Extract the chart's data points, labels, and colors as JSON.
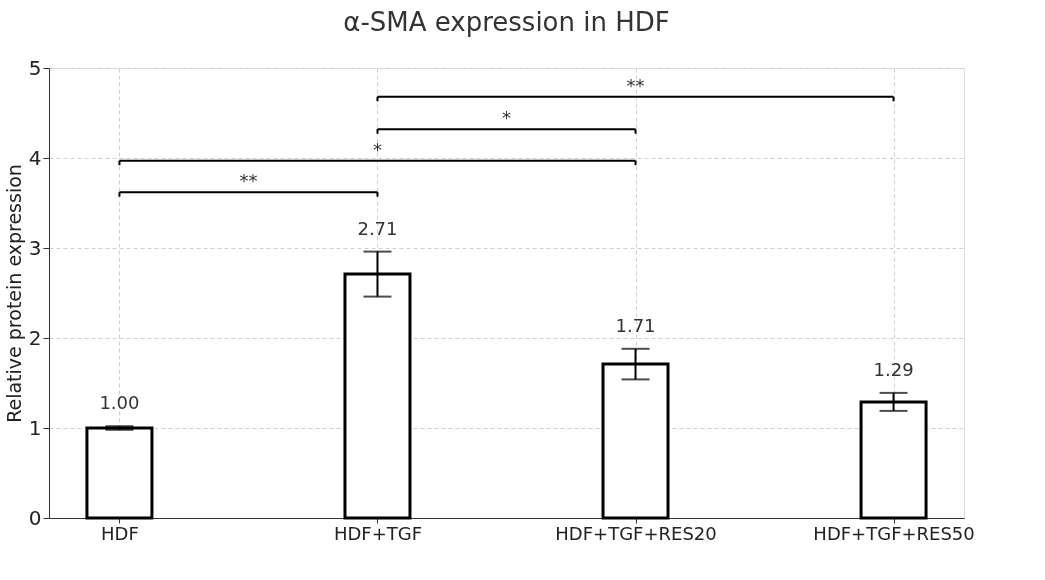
{
  "chart_data": {
    "type": "bar",
    "title": "α-SMA expression in HDF",
    "ylabel": "Relative protein expression",
    "categories": [
      "HDF",
      "HDF+TGF",
      "HDF+TGF+RES20",
      "HDF+TGF+RES50"
    ],
    "values": [
      1.0,
      2.71,
      1.71,
      1.29
    ],
    "errors": [
      0.02,
      0.25,
      0.17,
      0.1
    ],
    "color": "#ffffff",
    "value_labels": [
      "1.00",
      "2.71",
      "1.71",
      "1.29"
    ],
    "ylim": [
      0,
      5
    ],
    "yticks": [
      0,
      1,
      2,
      3,
      4,
      5
    ],
    "grid": true,
    "annotations": [
      "**",
      "*",
      "*",
      "**"
    ]
  }
}
